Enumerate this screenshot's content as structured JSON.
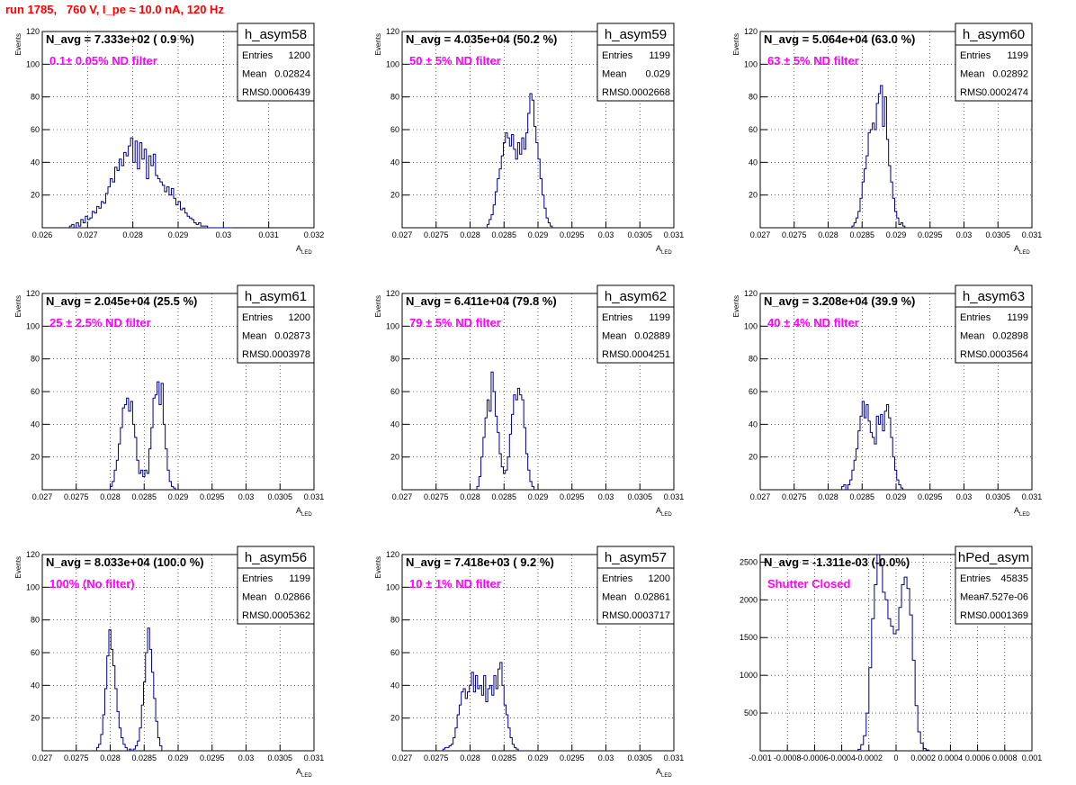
{
  "run_title": "run 1785,   760 V, I_pe ≈ 10.0 nA, 120 Hz",
  "colors": {
    "title": "#ff0000",
    "histogram": "#000080",
    "filter_label": "#ff00ff",
    "grid": "#000000"
  },
  "chart_data": [
    {
      "type": "histogram",
      "grid": true,
      "legend": "top-right",
      "name": "h_asym58",
      "title": "N_avg = 7.333e+02 ( 0.9 %)",
      "filter_label": "0.1± 0.05% ND filter",
      "ylabel": "Events",
      "xlabel": "A",
      "xlabel_sub": "LED",
      "xlim": [
        0.026,
        0.032
      ],
      "ylim": [
        0,
        120
      ],
      "xticks": [
        0.026,
        0.027,
        0.028,
        0.029,
        0.03,
        0.031,
        0.032
      ],
      "xtick_labels": [
        "0.026",
        "0.027",
        "0.028",
        "0.029",
        "0.03",
        "0.031",
        "0.032"
      ],
      "yticks": [
        0,
        20,
        40,
        60,
        80,
        100,
        120
      ],
      "ytick_labels": [
        "",
        "20",
        "40",
        "60",
        "80",
        "100",
        "120"
      ],
      "stats": [
        [
          "Entries",
          "1200"
        ],
        [
          "Mean",
          "0.02824"
        ],
        [
          "RMS",
          "0.0006439"
        ]
      ],
      "bins": {
        "start": 0.0266,
        "width": 5e-05,
        "values": [
          1,
          2,
          0,
          3,
          1,
          5,
          3,
          7,
          5,
          6,
          10,
          9,
          13,
          12,
          16,
          15,
          21,
          25,
          30,
          28,
          37,
          35,
          42,
          38,
          46,
          44,
          50,
          55,
          40,
          53,
          36,
          52,
          42,
          48,
          30,
          44,
          38,
          45,
          32,
          30,
          28,
          26,
          22,
          25,
          20,
          24,
          18,
          14,
          16,
          11,
          12,
          9,
          7,
          6,
          5,
          3,
          2,
          3,
          1,
          1,
          1,
          0,
          0,
          0,
          0,
          0,
          0,
          0,
          0,
          0,
          0,
          0
        ]
      }
    },
    {
      "type": "histogram",
      "grid": true,
      "legend": "top-right",
      "name": "h_asym59",
      "title": "N_avg = 4.035e+04 (50.2 %)",
      "filter_label": "50 ± 5% ND filter",
      "ylabel": "Events",
      "xlabel": "A",
      "xlabel_sub": "LED",
      "xlim": [
        0.027,
        0.031
      ],
      "ylim": [
        0,
        120
      ],
      "xticks": [
        0.027,
        0.0275,
        0.028,
        0.0285,
        0.029,
        0.0295,
        0.03,
        0.0305,
        0.031
      ],
      "xtick_labels": [
        "0.027",
        "0.0275",
        "0.028",
        "0.0285",
        "0.029",
        "0.0295",
        "0.03",
        "0.0305",
        "0.031"
      ],
      "yticks": [
        0,
        20,
        40,
        60,
        80,
        100,
        120
      ],
      "ytick_labels": [
        "",
        "20",
        "40",
        "60",
        "80",
        "100",
        "120"
      ],
      "stats": [
        [
          "Entries",
          "1199"
        ],
        [
          "Mean",
          "0.029"
        ],
        [
          "RMS",
          "0.0002668"
        ]
      ],
      "bins": {
        "start": 0.02825,
        "width": 3e-05,
        "values": [
          2,
          5,
          8,
          14,
          22,
          30,
          36,
          44,
          52,
          58,
          55,
          50,
          57,
          48,
          42,
          52,
          45,
          55,
          48,
          58,
          70,
          82,
          78,
          62,
          52,
          42,
          30,
          20,
          12,
          6,
          3,
          1
        ]
      }
    },
    {
      "type": "histogram",
      "grid": true,
      "legend": "top-right",
      "name": "h_asym60",
      "title": "N_avg = 5.064e+04 (63.0 %)",
      "filter_label": "63 ± 5% ND filter",
      "ylabel": "Events",
      "xlabel": "A",
      "xlabel_sub": "LED",
      "xlim": [
        0.027,
        0.031
      ],
      "ylim": [
        0,
        120
      ],
      "xticks": [
        0.027,
        0.0275,
        0.028,
        0.0285,
        0.029,
        0.0295,
        0.03,
        0.0305,
        0.031
      ],
      "xtick_labels": [
        "0.027",
        "0.0275",
        "0.028",
        "0.0285",
        "0.029",
        "0.0295",
        "0.03",
        "0.0305",
        "0.031"
      ],
      "yticks": [
        0,
        20,
        40,
        60,
        80,
        100,
        120
      ],
      "ytick_labels": [
        "",
        "20",
        "40",
        "60",
        "80",
        "100",
        "120"
      ],
      "stats": [
        [
          "Entries",
          "1199"
        ],
        [
          "Mean",
          "0.02892"
        ],
        [
          "RMS",
          "0.0002474"
        ]
      ],
      "bins": {
        "start": 0.02835,
        "width": 3e-05,
        "values": [
          1,
          3,
          6,
          10,
          18,
          28,
          36,
          44,
          58,
          60,
          64,
          60,
          76,
          82,
          87,
          62,
          80,
          54,
          38,
          28,
          18,
          10,
          6,
          2,
          3,
          1
        ]
      }
    },
    {
      "type": "histogram",
      "grid": true,
      "legend": "top-right",
      "name": "h_asym61",
      "title": "N_avg = 2.045e+04 (25.5 %)",
      "filter_label": "25 ± 2.5% ND filter",
      "ylabel": "Events",
      "xlabel": "A",
      "xlabel_sub": "LED",
      "xlim": [
        0.027,
        0.031
      ],
      "ylim": [
        0,
        120
      ],
      "xticks": [
        0.027,
        0.0275,
        0.028,
        0.0285,
        0.029,
        0.0295,
        0.03,
        0.0305,
        0.031
      ],
      "xtick_labels": [
        "0.027",
        "0.0275",
        "0.028",
        "0.0285",
        "0.029",
        "0.0295",
        "0.03",
        "0.0305",
        "0.031"
      ],
      "yticks": [
        0,
        20,
        40,
        60,
        80,
        100,
        120
      ],
      "ytick_labels": [
        "",
        "20",
        "40",
        "60",
        "80",
        "100",
        "120"
      ],
      "stats": [
        [
          "Entries",
          "1200"
        ],
        [
          "Mean",
          "0.02873"
        ],
        [
          "RMS",
          "0.0003978"
        ]
      ],
      "bins": {
        "start": 0.028,
        "width": 3e-05,
        "values": [
          2,
          5,
          12,
          18,
          28,
          38,
          50,
          52,
          56,
          48,
          54,
          40,
          32,
          18,
          10,
          12,
          8,
          12,
          10,
          25,
          38,
          56,
          58,
          66,
          52,
          65,
          40,
          25,
          12,
          5,
          2,
          1
        ]
      }
    },
    {
      "type": "histogram",
      "grid": true,
      "legend": "top-right",
      "name": "h_asym62",
      "title": "N_avg = 6.411e+04 (79.8 %)",
      "filter_label": "79 ± 5% ND filter",
      "ylabel": "Events",
      "xlabel": "A",
      "xlabel_sub": "LED",
      "xlim": [
        0.027,
        0.031
      ],
      "ylim": [
        0,
        120
      ],
      "xticks": [
        0.027,
        0.0275,
        0.028,
        0.0285,
        0.029,
        0.0295,
        0.03,
        0.0305,
        0.031
      ],
      "xtick_labels": [
        "0.027",
        "0.0275",
        "0.028",
        "0.0285",
        "0.029",
        "0.0295",
        "0.03",
        "0.0305",
        "0.031"
      ],
      "yticks": [
        0,
        20,
        40,
        60,
        80,
        100,
        120
      ],
      "ytick_labels": [
        "",
        "20",
        "40",
        "60",
        "80",
        "100",
        "120"
      ],
      "stats": [
        [
          "Entries",
          "1199"
        ],
        [
          "Mean",
          "0.02889"
        ],
        [
          "RMS",
          "0.0004251"
        ]
      ],
      "bins": {
        "start": 0.0281,
        "width": 3e-05,
        "values": [
          2,
          8,
          20,
          32,
          44,
          55,
          48,
          72,
          60,
          45,
          35,
          22,
          14,
          10,
          12,
          20,
          34,
          46,
          58,
          55,
          62,
          58,
          55,
          38,
          22,
          12,
          5,
          2
        ]
      }
    },
    {
      "type": "histogram",
      "grid": true,
      "legend": "top-right",
      "name": "h_asym63",
      "title": "N_avg = 3.208e+04 (39.9 %)",
      "filter_label": "40 ± 4% ND filter",
      "ylabel": "Events",
      "xlabel": "A",
      "xlabel_sub": "LED",
      "xlim": [
        0.027,
        0.031
      ],
      "ylim": [
        0,
        120
      ],
      "xticks": [
        0.027,
        0.0275,
        0.028,
        0.0285,
        0.029,
        0.0295,
        0.03,
        0.0305,
        0.031
      ],
      "xtick_labels": [
        "0.027",
        "0.0275",
        "0.028",
        "0.0285",
        "0.029",
        "0.0295",
        "0.03",
        "0.0305",
        "0.031"
      ],
      "yticks": [
        0,
        20,
        40,
        60,
        80,
        100,
        120
      ],
      "ytick_labels": [
        "",
        "20",
        "40",
        "60",
        "80",
        "100",
        "120"
      ],
      "stats": [
        [
          "Entries",
          "1199"
        ],
        [
          "Mean",
          "0.02898"
        ],
        [
          "RMS",
          "0.0003564"
        ]
      ],
      "bins": {
        "start": 0.0282,
        "width": 3e-05,
        "values": [
          2,
          3,
          0,
          3,
          6,
          12,
          18,
          25,
          36,
          45,
          54,
          44,
          52,
          42,
          35,
          32,
          28,
          45,
          40,
          46,
          36,
          48,
          52,
          44,
          32,
          20,
          12,
          6,
          3,
          1
        ]
      }
    },
    {
      "type": "histogram",
      "grid": true,
      "legend": "top-right",
      "name": "h_asym56",
      "title": "N_avg = 8.033e+04 (100.0 %)",
      "filter_label": "100% (No filter)",
      "ylabel": "Events",
      "xlabel": "A",
      "xlabel_sub": "LED",
      "xlim": [
        0.027,
        0.031
      ],
      "ylim": [
        0,
        120
      ],
      "xticks": [
        0.027,
        0.0275,
        0.028,
        0.0285,
        0.029,
        0.0295,
        0.03,
        0.0305,
        0.031
      ],
      "xtick_labels": [
        "0.027",
        "0.0275",
        "0.028",
        "0.0285",
        "0.029",
        "0.0295",
        "0.03",
        "0.0305",
        "0.031"
      ],
      "yticks": [
        0,
        20,
        40,
        60,
        80,
        100,
        120
      ],
      "ytick_labels": [
        "",
        "20",
        "40",
        "60",
        "80",
        "100",
        "120"
      ],
      "stats": [
        [
          "Entries",
          "1199"
        ],
        [
          "Mean",
          "0.02866"
        ],
        [
          "RMS",
          "0.0005362"
        ]
      ],
      "bins": {
        "start": 0.0278,
        "width": 3e-05,
        "values": [
          2,
          4,
          10,
          22,
          38,
          58,
          74,
          62,
          52,
          38,
          24,
          14,
          8,
          4,
          2,
          0,
          1,
          0,
          1,
          3,
          6,
          14,
          28,
          42,
          60,
          75,
          62,
          48,
          32,
          18,
          8,
          3
        ]
      }
    },
    {
      "type": "histogram",
      "grid": true,
      "legend": "top-right",
      "name": "h_asym57",
      "title": "N_avg = 7.418e+03 ( 9.2 %)",
      "filter_label": "10 ± 1% ND filter",
      "ylabel": "Events",
      "xlabel": "A",
      "xlabel_sub": "LED",
      "xlim": [
        0.027,
        0.031
      ],
      "ylim": [
        0,
        120
      ],
      "xticks": [
        0.027,
        0.0275,
        0.028,
        0.0285,
        0.029,
        0.0295,
        0.03,
        0.0305,
        0.031
      ],
      "xtick_labels": [
        "0.027",
        "0.0275",
        "0.028",
        "0.0285",
        "0.029",
        "0.0295",
        "0.03",
        "0.0305",
        "0.031"
      ],
      "yticks": [
        0,
        20,
        40,
        60,
        80,
        100,
        120
      ],
      "ytick_labels": [
        "",
        "20",
        "40",
        "60",
        "80",
        "100",
        "120"
      ],
      "stats": [
        [
          "Entries",
          "1200"
        ],
        [
          "Mean",
          "0.02861"
        ],
        [
          "RMS",
          "0.0003717"
        ]
      ],
      "bins": {
        "start": 0.0276,
        "width": 3e-05,
        "values": [
          1,
          2,
          2,
          3,
          4,
          8,
          14,
          22,
          28,
          36,
          38,
          32,
          36,
          40,
          48,
          36,
          46,
          38,
          40,
          34,
          46,
          30,
          38,
          40,
          34,
          46,
          38,
          50,
          54,
          40,
          28,
          22,
          14,
          8,
          4,
          2,
          1
        ]
      }
    },
    {
      "type": "histogram",
      "grid": true,
      "legend": "top-right",
      "name": "hPed_asym",
      "title": "N_avg = -1.311e-03 (-0.0%)",
      "filter_label": "Shutter Closed",
      "ylabel": "",
      "xlabel": "",
      "xlabel_sub": "",
      "xlim": [
        -0.001,
        0.001
      ],
      "ylim": [
        0,
        2600
      ],
      "xticks": [
        -0.001,
        -0.0008,
        -0.0006,
        -0.0004,
        -0.0002,
        0,
        0.0002,
        0.0004,
        0.0006,
        0.0008,
        0.001
      ],
      "xtick_labels": [
        "-0.001",
        "-0.0008",
        "-0.0006",
        "-0.0004",
        "-0.0002",
        "0",
        "0.0002",
        "0.0004",
        "0.0006",
        "0.0008",
        "0.001"
      ],
      "yticks": [
        0,
        500,
        1000,
        1500,
        2000,
        2500
      ],
      "ytick_labels": [
        "",
        "500",
        "1000",
        "1500",
        "2000",
        "2500"
      ],
      "stats": [
        [
          "Entries",
          "45835"
        ],
        [
          "Mean",
          "-7.527e-06"
        ],
        [
          "RMS",
          "0.0001369"
        ]
      ],
      "bins": {
        "start": -0.00028,
        "width": 2e-05,
        "values": [
          20,
          80,
          200,
          500,
          1100,
          1750,
          2200,
          2600,
          2450,
          2100,
          2000,
          1750,
          1650,
          1550,
          1600,
          1900,
          2200,
          2300,
          2150,
          1800,
          1200,
          600,
          250,
          100,
          30,
          10
        ]
      }
    }
  ]
}
